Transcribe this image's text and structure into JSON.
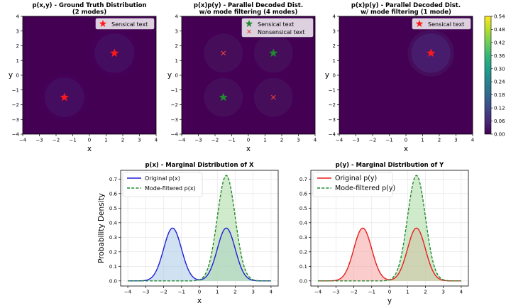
{
  "chart_data": [
    {
      "id": "joint",
      "type": "heatmap",
      "title": "p(x,y) - Ground Truth Distribution",
      "title2": "(2 modes)",
      "xlabel": "x",
      "ylabel": "y",
      "xlim": [
        -4,
        4
      ],
      "ylim": [
        -4,
        4
      ],
      "ticks": [
        -4,
        -3,
        -2,
        -1,
        0,
        1,
        2,
        3,
        4
      ],
      "gaussians": [
        {
          "mx": 1.5,
          "my": 1.5,
          "w": 0.5
        },
        {
          "mx": -1.5,
          "my": -1.5,
          "w": 0.5
        }
      ],
      "markers": [
        {
          "x": 1.5,
          "y": 1.5,
          "kind": "star",
          "color": "#ff1a1a"
        },
        {
          "x": -1.5,
          "y": -1.5,
          "kind": "star",
          "color": "#ff1a1a"
        }
      ],
      "legend": [
        {
          "label": "Sensical text",
          "kind": "star",
          "color": "#ff1a1a"
        }
      ]
    },
    {
      "id": "product",
      "type": "heatmap",
      "title": "p(x)p(y) - Parallel Decoded Dist.",
      "title2": "w/o mode filtering (4 modes)",
      "xlabel": "x",
      "ylabel": "y",
      "xlim": [
        -4,
        4
      ],
      "ylim": [
        -4,
        4
      ],
      "ticks": [
        -4,
        -3,
        -2,
        -1,
        0,
        1,
        2,
        3,
        4
      ],
      "gaussians": [
        {
          "mx": 1.5,
          "my": 1.5,
          "w": 0.25
        },
        {
          "mx": -1.5,
          "my": -1.5,
          "w": 0.25
        },
        {
          "mx": 1.5,
          "my": -1.5,
          "w": 0.25
        },
        {
          "mx": -1.5,
          "my": 1.5,
          "w": 0.25
        }
      ],
      "markers": [
        {
          "x": 1.5,
          "y": 1.5,
          "kind": "star",
          "color": "#1f8a2e"
        },
        {
          "x": -1.5,
          "y": -1.5,
          "kind": "star",
          "color": "#1f8a2e"
        },
        {
          "x": -1.5,
          "y": 1.5,
          "kind": "cross",
          "color": "#e8403a"
        },
        {
          "x": 1.5,
          "y": -1.5,
          "kind": "cross",
          "color": "#e8403a"
        }
      ],
      "legend": [
        {
          "label": "Sensical text",
          "kind": "star",
          "color": "#1f8a2e"
        },
        {
          "label": "Nonsensical text",
          "kind": "cross",
          "color": "#e8403a"
        }
      ]
    },
    {
      "id": "filtered",
      "type": "heatmap",
      "title": "p(x)p(y) - Parallel Decoded Dist.",
      "title2": "w/ mode filtering (1 mode)",
      "xlabel": "x",
      "ylabel": "y",
      "xlim": [
        -4,
        4
      ],
      "ylim": [
        -4,
        4
      ],
      "ticks": [
        -4,
        -3,
        -2,
        -1,
        0,
        1,
        2,
        3,
        4
      ],
      "gaussians": [
        {
          "mx": 1.5,
          "my": 1.5,
          "w": 1.0
        }
      ],
      "markers": [
        {
          "x": 1.5,
          "y": 1.5,
          "kind": "star",
          "color": "#ff1a1a"
        }
      ],
      "legend": [
        {
          "label": "Sensical text",
          "kind": "star",
          "color": "#ff1a1a"
        }
      ]
    },
    {
      "id": "margx",
      "type": "line",
      "title": "p(x) - Marginal Distribution of X",
      "xlabel": "x",
      "ylabel": "Probability Density",
      "xlim": [
        -4,
        4
      ],
      "ylim": [
        -0.035,
        0.76
      ],
      "xticks": [
        -4,
        -3,
        -2,
        -1,
        0,
        1,
        2,
        3,
        4
      ],
      "yticks": [
        "0.0",
        "0.1",
        "0.2",
        "0.3",
        "0.4",
        "0.5",
        "0.6",
        "0.7"
      ],
      "grid": true,
      "series": [
        {
          "name": "Original p(x)",
          "color": "#1f1fd8",
          "fill": "#a9c8e6",
          "style": "solid",
          "components": [
            {
              "mu": -1.5,
              "w": 0.5
            },
            {
              "mu": 1.5,
              "w": 0.5
            }
          ],
          "peak": 0.363
        },
        {
          "name": "Mode-filtered p(x)",
          "color": "#1f8a2e",
          "fill": "#a9dba0",
          "style": "dashed",
          "components": [
            {
              "mu": 1.5,
              "w": 1.0
            }
          ],
          "peak": 0.725
        }
      ]
    },
    {
      "id": "margy",
      "type": "line",
      "title": "p(y) - Marginal Distribution of Y",
      "xlabel": "y",
      "ylabel": "",
      "xlim": [
        -4,
        4
      ],
      "ylim": [
        -0.035,
        0.76
      ],
      "xticks": [
        -4,
        -3,
        -2,
        -1,
        0,
        1,
        2,
        3,
        4
      ],
      "yticks": [
        "0.0",
        "0.1",
        "0.2",
        "0.3",
        "0.4",
        "0.5",
        "0.6",
        "0.7"
      ],
      "grid": true,
      "series": [
        {
          "name": "Original p(y)",
          "color": "#e81e1e",
          "fill": "#f5a3a3",
          "style": "solid",
          "components": [
            {
              "mu": -1.5,
              "w": 0.5
            },
            {
              "mu": 1.5,
              "w": 0.5
            }
          ],
          "peak": 0.363
        },
        {
          "name": "Mode-filtered p(y)",
          "color": "#1f8a2e",
          "fill": "#a9dba0",
          "style": "dashed",
          "components": [
            {
              "mu": 1.5,
              "w": 1.0
            }
          ],
          "peak": 0.725
        }
      ]
    }
  ],
  "colorbar": {
    "min": 0.0,
    "max": 0.54,
    "ticks": [
      "0.00",
      "0.06",
      "0.12",
      "0.18",
      "0.24",
      "0.30",
      "0.36",
      "0.42",
      "0.48",
      "0.54"
    ],
    "colormap": [
      "#440154",
      "#482878",
      "#3e4989",
      "#31688e",
      "#26828e",
      "#1f9e89",
      "#35b779",
      "#6ece58",
      "#b5de2b",
      "#fde725"
    ]
  }
}
